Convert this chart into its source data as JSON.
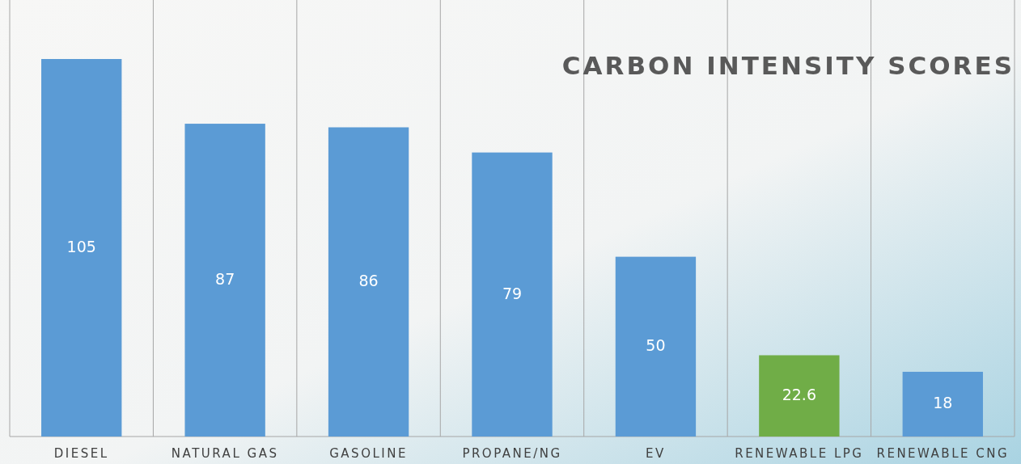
{
  "chart_data": {
    "type": "bar",
    "title": "CARBON INTENSITY SCORES",
    "categories": [
      "DIESEL",
      "NATURAL GAS",
      "GASOLINE",
      "PROPANE/NG",
      "EV",
      "RENEWABLE LPG",
      "RENEWABLE CNG"
    ],
    "values": [
      105,
      87,
      86,
      79,
      50,
      22.6,
      18
    ],
    "colors": [
      "#5b9bd5",
      "#5b9bd5",
      "#5b9bd5",
      "#5b9bd5",
      "#5b9bd5",
      "#70ad47",
      "#5b9bd5"
    ],
    "tick_labels": "x",
    "grid": "x",
    "data_labels": true
  }
}
